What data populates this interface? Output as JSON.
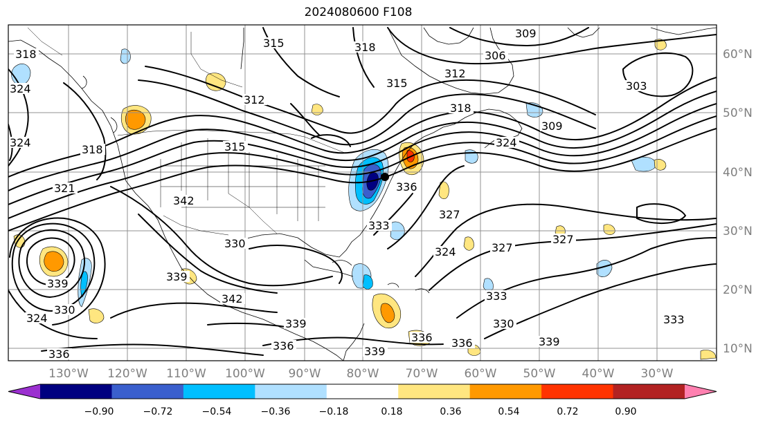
{
  "title": "2024080600 F108",
  "lon_labels": [
    "130°W",
    "120°W",
    "110°W",
    "100°W",
    "90°W",
    "80°W",
    "70°W",
    "60°W",
    "50°W",
    "40°W",
    "30°W"
  ],
  "lat_labels": [
    "60°N",
    "50°N",
    "40°N",
    "30°N",
    "20°N",
    "10°N"
  ],
  "colorbar": {
    "tick_labels": [
      "−0.90",
      "−0.72",
      "−0.54",
      "−0.36",
      "−0.18",
      "0.18",
      "0.36",
      "0.54",
      "0.72",
      "0.90"
    ],
    "colors": [
      "#9b30d0",
      "#000080",
      "#3a5fcd",
      "#00bfff",
      "#b0e0ff",
      "#ffffff",
      "#ffe680",
      "#ff9900",
      "#ff3300",
      "#b22222",
      "#ff80b0"
    ]
  },
  "contour_labels": [
    {
      "text": "315"
    },
    {
      "text": "318"
    },
    {
      "text": "309"
    },
    {
      "text": "306"
    },
    {
      "text": "312"
    },
    {
      "text": "315"
    },
    {
      "text": "303"
    },
    {
      "text": "318"
    },
    {
      "text": "309"
    },
    {
      "text": "324"
    },
    {
      "text": "312"
    },
    {
      "text": "315"
    },
    {
      "text": "318"
    },
    {
      "text": "324"
    },
    {
      "text": "321"
    },
    {
      "text": "342"
    },
    {
      "text": "336"
    },
    {
      "text": "333"
    },
    {
      "text": "327"
    },
    {
      "text": "324"
    },
    {
      "text": "327"
    },
    {
      "text": "327"
    },
    {
      "text": "339"
    },
    {
      "text": "330"
    },
    {
      "text": "342"
    },
    {
      "text": "339"
    },
    {
      "text": "336"
    },
    {
      "text": "339"
    },
    {
      "text": "336"
    },
    {
      "text": "333"
    },
    {
      "text": "330"
    },
    {
      "text": "339"
    },
    {
      "text": "333"
    },
    {
      "text": "336"
    },
    {
      "text": "339"
    },
    {
      "text": "336"
    },
    {
      "text": "324"
    },
    {
      "text": "318"
    },
    {
      "text": "324"
    },
    {
      "text": "330"
    }
  ]
}
